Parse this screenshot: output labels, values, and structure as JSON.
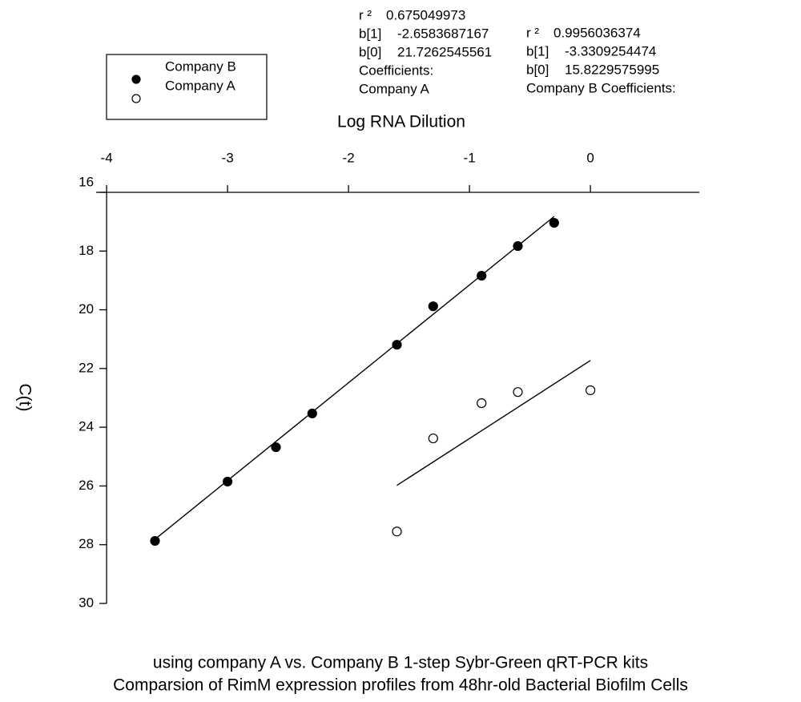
{
  "chart_data": {
    "type": "scatter",
    "title": [
      "using company A vs. Company B 1-step Sybr-Green qRT-PCR kits",
      "Comparsion of RimM expression profiles from 48hr-old Bacterial Biofilm Cells"
    ],
    "x_label": "Log RNA Dilution",
    "y_label": "C(t)",
    "xlim": [
      -4.1,
      0.9
    ],
    "xticks": [
      -4,
      -3,
      -2,
      -1,
      0
    ],
    "ylim": [
      16,
      30
    ],
    "yticks": [
      16,
      18,
      20,
      22,
      24,
      26,
      28,
      30
    ],
    "y_inverted": true,
    "legend": "upper left",
    "series": [
      {
        "name": "Company B",
        "color": "#000000",
        "filled": true,
        "x": [
          -3.6,
          -3.0,
          -2.6,
          -2.3,
          -1.6,
          -1.3,
          -0.9,
          -0.6,
          -0.3
        ],
        "values": [
          27.87,
          25.85,
          24.68,
          23.53,
          21.19,
          19.88,
          18.84,
          17.83,
          17.04
        ]
      },
      {
        "name": "Company A",
        "color": "#000000",
        "filled": false,
        "x": [
          -1.6,
          -1.3,
          -0.9,
          -0.6,
          0
        ],
        "values": [
          27.55,
          24.38,
          23.18,
          22.8,
          22.74
        ]
      }
    ],
    "fits": [
      {
        "heading": [
          "Coefficients:",
          "Company A"
        ],
        "r2_label": "r ²",
        "r2": 0.675049973,
        "b1_label": "b[1]",
        "b1": -2.6583687167,
        "b0_label": "b[0]",
        "b0": 21.7262545561
      },
      {
        "heading": [
          "Company B Coefficients:"
        ],
        "r2_label": "r ²",
        "r2": 0.9956036374,
        "b1_label": "b[1]",
        "b1": -3.3309254474,
        "b0_label": "b[0]",
        "b0": 15.8229575995
      }
    ]
  }
}
